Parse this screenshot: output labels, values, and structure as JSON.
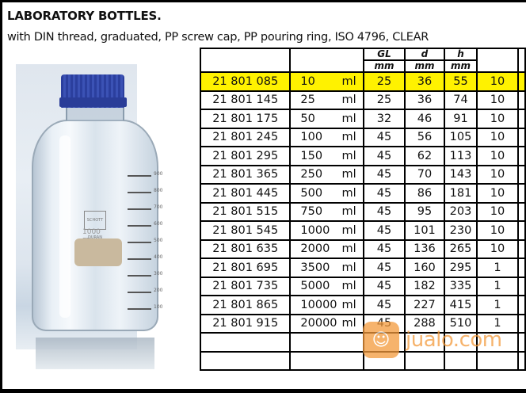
{
  "header": {
    "title": "LABORATORY BOTTLES.",
    "subtitle": "with DIN thread, graduated, PP screw cap, PP pouring ring, ISO 4796, CLEAR"
  },
  "product_image": {
    "cap_color": "#2f45a8",
    "bottle_mark": "SCHOTT DURAN",
    "volume_mark": "1000 ml",
    "graduations": [
      "900",
      "800",
      "700",
      "600",
      "500",
      "400",
      "300",
      "200",
      "100"
    ]
  },
  "table": {
    "headers": {
      "gl": {
        "top": "GL",
        "bottom": "mm"
      },
      "d": {
        "top": "d",
        "bottom": "mm"
      },
      "h": {
        "top": "h",
        "bottom": "mm"
      }
    },
    "highlight_color": "#fff200",
    "rows": [
      {
        "cat": "21 801 085",
        "vol": "10",
        "unit": "ml",
        "gl": "25",
        "d": "36",
        "h": "55",
        "qty": "10"
      },
      {
        "cat": "21 801 145",
        "vol": "25",
        "unit": "ml",
        "gl": "25",
        "d": "36",
        "h": "74",
        "qty": "10"
      },
      {
        "cat": "21 801 175",
        "vol": "50",
        "unit": "ml",
        "gl": "32",
        "d": "46",
        "h": "91",
        "qty": "10"
      },
      {
        "cat": "21 801 245",
        "vol": "100",
        "unit": "ml",
        "gl": "45",
        "d": "56",
        "h": "105",
        "qty": "10"
      },
      {
        "cat": "21 801 295",
        "vol": "150",
        "unit": "ml",
        "gl": "45",
        "d": "62",
        "h": "113",
        "qty": "10"
      },
      {
        "cat": "21 801 365",
        "vol": "250",
        "unit": "ml",
        "gl": "45",
        "d": "70",
        "h": "143",
        "qty": "10"
      },
      {
        "cat": "21 801 445",
        "vol": "500",
        "unit": "ml",
        "gl": "45",
        "d": "86",
        "h": "181",
        "qty": "10"
      },
      {
        "cat": "21 801 515",
        "vol": "750",
        "unit": "ml",
        "gl": "45",
        "d": "95",
        "h": "203",
        "qty": "10"
      },
      {
        "cat": "21 801 545",
        "vol": "1000",
        "unit": "ml",
        "gl": "45",
        "d": "101",
        "h": "230",
        "qty": "10"
      },
      {
        "cat": "21 801 635",
        "vol": "2000",
        "unit": "ml",
        "gl": "45",
        "d": "136",
        "h": "265",
        "qty": "10"
      },
      {
        "cat": "21 801 695",
        "vol": "3500",
        "unit": "ml",
        "gl": "45",
        "d": "160",
        "h": "295",
        "qty": "1"
      },
      {
        "cat": "21 801 735",
        "vol": "5000",
        "unit": "ml",
        "gl": "45",
        "d": "182",
        "h": "335",
        "qty": "1"
      },
      {
        "cat": "21 801 865",
        "vol": "10000",
        "unit": "ml",
        "gl": "45",
        "d": "227",
        "h": "415",
        "qty": "1"
      },
      {
        "cat": "21 801 915",
        "vol": "20000",
        "unit": "ml",
        "gl": "45",
        "d": "288",
        "h": "510",
        "qty": "1"
      }
    ]
  },
  "watermark": {
    "text": "jualo.com",
    "color": "#f39a3c"
  }
}
